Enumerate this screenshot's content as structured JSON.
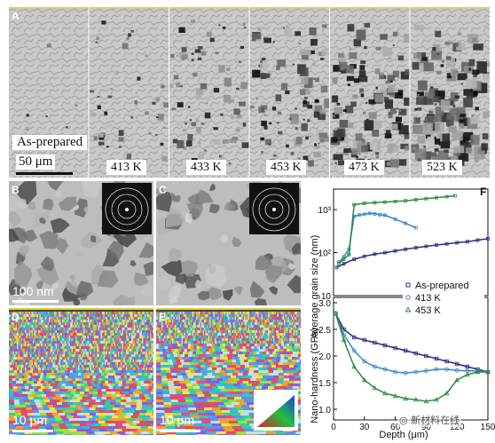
{
  "panel_a": {
    "label": "A",
    "strips": [
      {
        "label": "As-prepared",
        "fill": 0.05
      },
      {
        "label": "413 K",
        "fill": 0.22
      },
      {
        "label": "433 K",
        "fill": 0.4
      },
      {
        "label": "453 K",
        "fill": 0.55
      },
      {
        "label": "473 K",
        "fill": 0.68
      },
      {
        "label": "523 K",
        "fill": 0.85
      }
    ],
    "scale_bar": "50 μm"
  },
  "panel_b": {
    "label": "B",
    "scale_bar": "100 nm"
  },
  "panel_c": {
    "label": "C"
  },
  "panel_d": {
    "label": "D",
    "scale_bar": "10 μm"
  },
  "panel_e": {
    "label": "E",
    "scale_bar": "10 μm"
  },
  "watermark": "新材料在线",
  "chart_data": [
    {
      "type": "scatter",
      "panel": "F",
      "xlabel": "",
      "ylabel": "Average grain size (nm)",
      "yscale": "log",
      "ylim": [
        10,
        3000
      ],
      "yticks": [
        "10³",
        "10²",
        "10"
      ],
      "xlim": [
        0,
        150
      ],
      "series": [
        {
          "name": "As-prepared",
          "color": "#2b2b8c",
          "x": [
            3,
            10,
            20,
            30,
            40,
            50,
            60,
            70,
            80,
            90,
            100,
            110,
            120,
            130,
            140,
            150
          ],
          "y": [
            45,
            55,
            70,
            82,
            92,
            100,
            110,
            120,
            130,
            140,
            150,
            160,
            170,
            180,
            195,
            210
          ]
        },
        {
          "name": "413 K",
          "color": "#3a86c8",
          "x": [
            5,
            10,
            15,
            20,
            25,
            30,
            35,
            40,
            45,
            50,
            60,
            70,
            80
          ],
          "y": [
            60,
            80,
            120,
            700,
            750,
            780,
            820,
            800,
            760,
            740,
            600,
            480,
            380
          ]
        },
        {
          "name": "453 K",
          "color": "#2e8b3a",
          "x": [
            5,
            10,
            15,
            20,
            30,
            40,
            50,
            60,
            70,
            80,
            90,
            100,
            110,
            118
          ],
          "y": [
            55,
            70,
            90,
            1300,
            1400,
            1450,
            1500,
            1550,
            1600,
            1700,
            1800,
            1900,
            2000,
            2100
          ]
        }
      ]
    },
    {
      "type": "scatter",
      "panel": "F",
      "xlabel": "Depth (μm)",
      "ylabel": "Nano-hardness (GPa)",
      "ylim": [
        0.8,
        3.1
      ],
      "yticks": [
        "3.0",
        "2.5",
        "2.0",
        "1.5",
        "1.0"
      ],
      "xlim": [
        0,
        150
      ],
      "xticks": [
        "0",
        "30",
        "60",
        "90",
        "120",
        "150"
      ],
      "legend": "top-right",
      "series": [
        {
          "name": "As-prepared",
          "color": "#2b2b8c",
          "x": [
            2,
            10,
            20,
            30,
            40,
            50,
            60,
            70,
            80,
            90,
            100,
            110,
            120,
            130,
            140,
            150
          ],
          "y": [
            2.8,
            2.5,
            2.35,
            2.3,
            2.25,
            2.2,
            2.15,
            2.1,
            2.05,
            2.0,
            1.95,
            1.9,
            1.85,
            1.8,
            1.75,
            1.7
          ]
        },
        {
          "name": "413 K",
          "color": "#3a86c8",
          "x": [
            2,
            10,
            20,
            30,
            40,
            50,
            60,
            70,
            80,
            90,
            100,
            110,
            120,
            130,
            140,
            150
          ],
          "y": [
            2.8,
            2.4,
            2.1,
            1.9,
            1.8,
            1.75,
            1.7,
            1.68,
            1.7,
            1.72,
            1.75,
            1.75,
            1.73,
            1.72,
            1.72,
            1.7
          ]
        },
        {
          "name": "453 K",
          "color": "#2e8b3a",
          "x": [
            2,
            10,
            20,
            30,
            40,
            50,
            60,
            70,
            80,
            90,
            100,
            110,
            120,
            130,
            140,
            150
          ],
          "y": [
            2.8,
            2.3,
            1.8,
            1.55,
            1.4,
            1.3,
            1.25,
            1.2,
            1.18,
            1.15,
            1.18,
            1.3,
            1.55,
            1.65,
            1.7,
            1.7
          ]
        }
      ]
    }
  ]
}
